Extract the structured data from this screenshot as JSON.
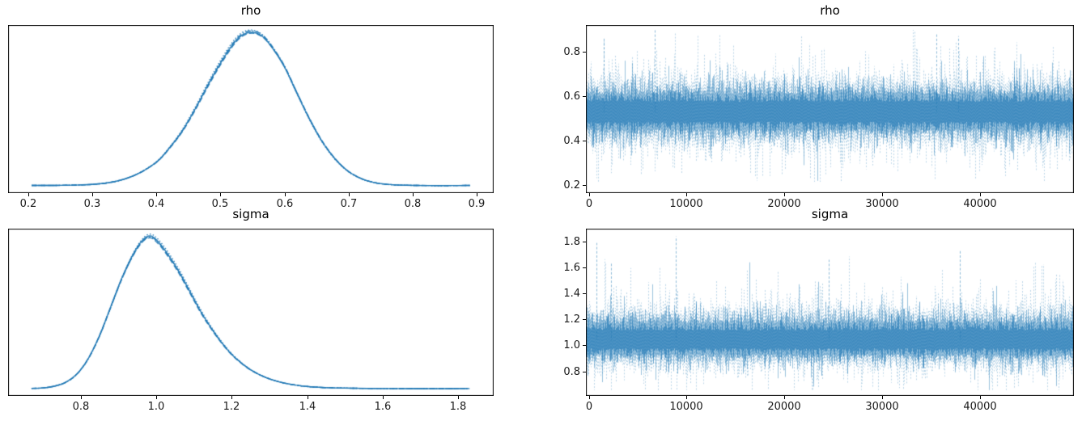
{
  "style": {
    "line_color": "#1f77b4",
    "background": "#ffffff",
    "axis_color": "#000000",
    "text_color": "#1a1a1a"
  },
  "chart_data": [
    {
      "id": "rho-kde",
      "type": "line",
      "subtype": "kde",
      "title": "rho",
      "position": "top-left",
      "color": "#1f77b4",
      "n_chains": 4,
      "linestyles": [
        "solid",
        "dashed",
        "dashdot",
        "dotted"
      ],
      "xlim": [
        0.168,
        0.927
      ],
      "xticks": [
        0.2,
        0.3,
        0.4,
        0.5,
        0.6,
        0.7,
        0.8,
        0.9
      ],
      "xtick_labels": [
        "0.2",
        "0.3",
        "0.4",
        "0.5",
        "0.6",
        "0.7",
        "0.8",
        "0.9"
      ],
      "yticks": [],
      "ytick_labels": [],
      "data_range": [
        0.205,
        0.89
      ],
      "peak_x": 0.545,
      "kde_points": [
        [
          0.205,
          0.008
        ],
        [
          0.24,
          0.008
        ],
        [
          0.28,
          0.011
        ],
        [
          0.31,
          0.018
        ],
        [
          0.34,
          0.038
        ],
        [
          0.37,
          0.082
        ],
        [
          0.4,
          0.16
        ],
        [
          0.42,
          0.25
        ],
        [
          0.44,
          0.36
        ],
        [
          0.46,
          0.5
        ],
        [
          0.48,
          0.655
        ],
        [
          0.5,
          0.8
        ],
        [
          0.52,
          0.925
        ],
        [
          0.535,
          0.985
        ],
        [
          0.55,
          1.0
        ],
        [
          0.565,
          0.975
        ],
        [
          0.58,
          0.905
        ],
        [
          0.6,
          0.775
        ],
        [
          0.62,
          0.6
        ],
        [
          0.64,
          0.43
        ],
        [
          0.66,
          0.285
        ],
        [
          0.68,
          0.175
        ],
        [
          0.7,
          0.098
        ],
        [
          0.72,
          0.052
        ],
        [
          0.74,
          0.027
        ],
        [
          0.76,
          0.015
        ],
        [
          0.79,
          0.009
        ],
        [
          0.83,
          0.007
        ],
        [
          0.86,
          0.007
        ],
        [
          0.89,
          0.008
        ]
      ]
    },
    {
      "id": "rho-trace",
      "type": "line",
      "subtype": "trace",
      "title": "rho",
      "position": "top-right",
      "color": "#1f77b4",
      "xlim": [
        -300,
        49600
      ],
      "xticks": [
        0,
        10000,
        20000,
        30000,
        40000
      ],
      "xtick_labels": [
        "0",
        "10000",
        "20000",
        "30000",
        "40000"
      ],
      "ylim": [
        0.164,
        0.92
      ],
      "yticks": [
        0.2,
        0.4,
        0.6,
        0.8
      ],
      "ytick_labels": [
        "0.2",
        "0.4",
        "0.6",
        "0.8"
      ],
      "n_samples": 50000,
      "mean": 0.53,
      "sd": 0.075,
      "bulk_range": [
        0.37,
        0.69
      ],
      "extreme_range": [
        0.215,
        0.9
      ],
      "notable_spikes": [
        {
          "x": 6700,
          "y": 0.9
        },
        {
          "x": 1500,
          "y": 0.86
        },
        {
          "x": 35500,
          "y": 0.88
        },
        {
          "x": 37800,
          "y": 0.87
        }
      ]
    },
    {
      "id": "sigma-kde",
      "type": "line",
      "subtype": "kde",
      "title": "sigma",
      "position": "bottom-left",
      "color": "#1f77b4",
      "n_chains": 4,
      "linestyles": [
        "solid",
        "dashed",
        "dashdot",
        "dotted"
      ],
      "xlim": [
        0.608,
        1.894
      ],
      "xticks": [
        0.8,
        1.0,
        1.2,
        1.4,
        1.6,
        1.8
      ],
      "xtick_labels": [
        "0.8",
        "1.0",
        "1.2",
        "1.4",
        "1.6",
        "1.8"
      ],
      "yticks": [],
      "ytick_labels": [],
      "data_range": [
        0.67,
        1.83
      ],
      "peak_x": 0.985,
      "kde_points": [
        [
          0.67,
          0.007
        ],
        [
          0.7,
          0.01
        ],
        [
          0.73,
          0.021
        ],
        [
          0.76,
          0.046
        ],
        [
          0.79,
          0.1
        ],
        [
          0.82,
          0.2
        ],
        [
          0.85,
          0.35
        ],
        [
          0.88,
          0.54
        ],
        [
          0.91,
          0.73
        ],
        [
          0.94,
          0.885
        ],
        [
          0.965,
          0.975
        ],
        [
          0.985,
          1.0
        ],
        [
          1.005,
          0.965
        ],
        [
          1.03,
          0.885
        ],
        [
          1.06,
          0.77
        ],
        [
          1.09,
          0.635
        ],
        [
          1.12,
          0.5
        ],
        [
          1.15,
          0.385
        ],
        [
          1.18,
          0.285
        ],
        [
          1.21,
          0.205
        ],
        [
          1.25,
          0.128
        ],
        [
          1.29,
          0.078
        ],
        [
          1.33,
          0.047
        ],
        [
          1.37,
          0.028
        ],
        [
          1.41,
          0.017
        ],
        [
          1.46,
          0.011
        ],
        [
          1.52,
          0.008
        ],
        [
          1.6,
          0.006
        ],
        [
          1.71,
          0.005
        ],
        [
          1.83,
          0.006
        ]
      ]
    },
    {
      "id": "sigma-trace",
      "type": "line",
      "subtype": "trace",
      "title": "sigma",
      "position": "bottom-right",
      "color": "#1f77b4",
      "xlim": [
        -300,
        49600
      ],
      "xticks": [
        0,
        10000,
        20000,
        30000,
        40000
      ],
      "xtick_labels": [
        "0",
        "10000",
        "20000",
        "30000",
        "40000"
      ],
      "ylim": [
        0.61,
        1.9
      ],
      "yticks": [
        0.8,
        1.0,
        1.2,
        1.4,
        1.6,
        1.8
      ],
      "ytick_labels": [
        "0.8",
        "1.0",
        "1.2",
        "1.4",
        "1.6",
        "1.8"
      ],
      "n_samples": 50000,
      "mean": 1.04,
      "sd_up": 0.125,
      "sd_down": 0.105,
      "bulk_range": [
        0.75,
        1.36
      ],
      "extreme_range": [
        0.655,
        1.84
      ],
      "notable_spikes": [
        {
          "x": 800,
          "y": 1.79
        },
        {
          "x": 8900,
          "y": 1.84
        },
        {
          "x": 2300,
          "y": 1.64
        },
        {
          "x": 24500,
          "y": 1.66
        },
        {
          "x": 37900,
          "y": 1.73
        }
      ]
    }
  ]
}
